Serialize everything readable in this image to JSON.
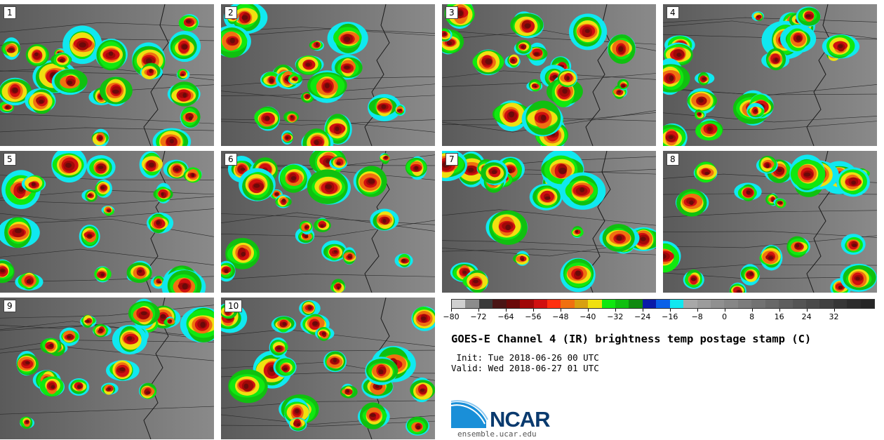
{
  "panels": [
    {
      "label": "1"
    },
    {
      "label": "2"
    },
    {
      "label": "3"
    },
    {
      "label": "4"
    },
    {
      "label": "5"
    },
    {
      "label": "6"
    },
    {
      "label": "7"
    },
    {
      "label": "8"
    },
    {
      "label": "9"
    },
    {
      "label": "10"
    }
  ],
  "colorbar": {
    "colors": [
      "#d0d0d0",
      "#8c8c8c",
      "#3a3a3a",
      "#4a1515",
      "#6a0a0a",
      "#a00808",
      "#d01010",
      "#ff3010",
      "#f07010",
      "#d8a010",
      "#f0e010",
      "#10e810",
      "#10c010",
      "#108a10",
      "#0a1aa8",
      "#0a60e8",
      "#10e8f0",
      "#a8a8a8",
      "#9c9c9c",
      "#909090",
      "#868686",
      "#7c7c7c",
      "#727272",
      "#686868",
      "#5e5e5e",
      "#545454",
      "#4a4a4a",
      "#404040",
      "#363636",
      "#2c2c2c",
      "#262626"
    ],
    "tick_labels": [
      "−80",
      "−72",
      "−64",
      "−56",
      "−48",
      "−40",
      "−32",
      "−24",
      "−16",
      "−8",
      "0",
      "8",
      "16",
      "24",
      "32"
    ]
  },
  "title": "GOES-E Channel 4 (IR) brightness temp postage stamp (C)",
  "init": " Init: Tue 2018-06-26 00 UTC",
  "valid": "Valid: Wed 2018-06-27 01 UTC",
  "logo": {
    "text": "NCAR",
    "brand_color": "#0a3a6e",
    "accent_color": "#1a8fd8"
  },
  "site": "ensemble.ucar.edu"
}
